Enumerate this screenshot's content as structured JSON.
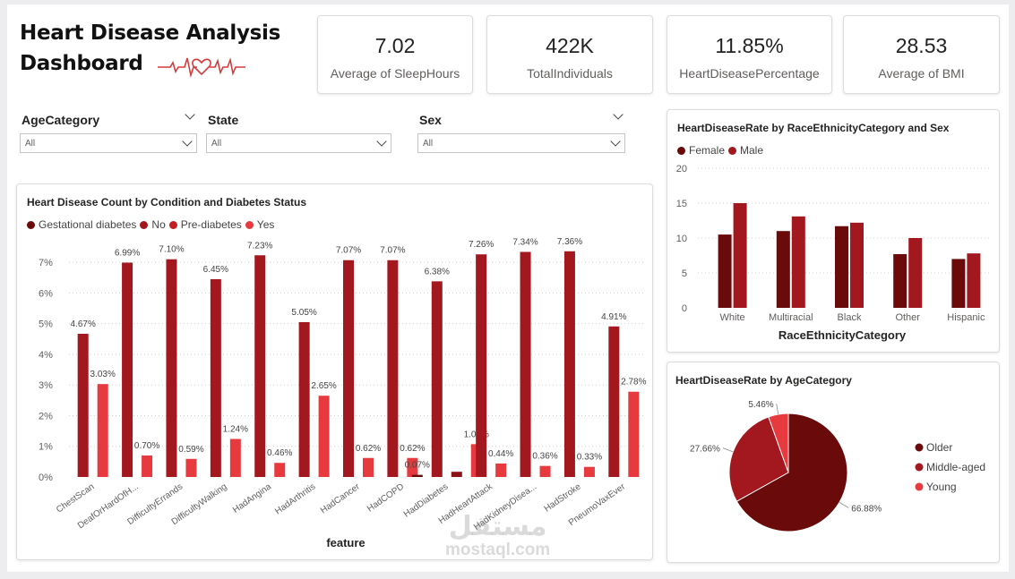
{
  "header": {
    "title_line1": "Heart Disease Analysis",
    "title_line2": "Dashboard"
  },
  "kpis": [
    {
      "value": "7.02",
      "label": "Average of SleepHours"
    },
    {
      "value": "422K",
      "label": "TotalIndividuals"
    },
    {
      "value": "11.85%",
      "label": "HeartDiseasePercentage"
    },
    {
      "value": "28.53",
      "label": "Average of BMI"
    }
  ],
  "slicers": [
    {
      "label": "AgeCategory",
      "value": "All"
    },
    {
      "label": "State",
      "value": "All"
    },
    {
      "label": "Sex",
      "value": "All"
    }
  ],
  "colors": {
    "dark": "#6b0a0a",
    "mid": "#a3171f",
    "light": "#e63a3f",
    "grid": "#cfcfcf"
  },
  "chart_data": [
    {
      "type": "bar",
      "title": "Heart Disease Count by Condition and Diabetes Status",
      "xlabel": "feature",
      "ylabel": "",
      "ylim": [
        0,
        7.5
      ],
      "yticks": [
        "0%",
        "1%",
        "2%",
        "3%",
        "4%",
        "5%",
        "6%",
        "7%"
      ],
      "legend": [
        "Gestational diabetes",
        "No",
        "Pre-diabetes",
        "Yes"
      ],
      "categories": [
        "ChestScan",
        "DeafOrHardOfH...",
        "DifficultyErrands",
        "DifficultyWalking",
        "HadAngina",
        "HadArthritis",
        "HadCancer",
        "HadCOPD",
        "HadDiabetes",
        "HadHeartAttack",
        "HadKidneyDisea...",
        "HadStroke",
        "PneumoVaxEver"
      ],
      "points": [
        {
          "x": 0,
          "series": "No",
          "value": 4.67,
          "label": "4.67%"
        },
        {
          "x": 0,
          "series": "Yes",
          "value": 3.03,
          "label": "3.03%"
        },
        {
          "x": 1,
          "series": "No",
          "value": 6.99,
          "label": "6.99%"
        },
        {
          "x": 1,
          "series": "Yes",
          "value": 0.7,
          "label": "0.70%"
        },
        {
          "x": 2,
          "series": "No",
          "value": 7.1,
          "label": "7.10%"
        },
        {
          "x": 2,
          "series": "Yes",
          "value": 0.59,
          "label": "0.59%"
        },
        {
          "x": 3,
          "series": "No",
          "value": 6.45,
          "label": "6.45%"
        },
        {
          "x": 3,
          "series": "Yes",
          "value": 1.24,
          "label": "1.24%"
        },
        {
          "x": 4,
          "series": "No",
          "value": 7.23,
          "label": "7.23%"
        },
        {
          "x": 4,
          "series": "Yes",
          "value": 0.46,
          "label": "0.46%"
        },
        {
          "x": 5,
          "series": "No",
          "value": 5.05,
          "label": "5.05%"
        },
        {
          "x": 5,
          "series": "Yes",
          "value": 2.65,
          "label": "2.65%"
        },
        {
          "x": 6,
          "series": "No",
          "value": 7.07,
          "label": "7.07%"
        },
        {
          "x": 6,
          "series": "Yes",
          "value": 0.62,
          "label": "0.62%"
        },
        {
          "x": 7,
          "series": "No",
          "value": 7.07,
          "label": "7.07%"
        },
        {
          "x": 7,
          "series": "Yes",
          "value": 0.62,
          "label": "0.62%"
        },
        {
          "x": 8,
          "series": "Gestational diabetes",
          "value": 0.07,
          "label": "0.07%"
        },
        {
          "x": 8,
          "series": "No",
          "value": 6.38,
          "label": "6.38%"
        },
        {
          "x": 8,
          "series": "Pre-diabetes",
          "value": 0.17,
          "label": ""
        },
        {
          "x": 8,
          "series": "Yes",
          "value": 1.07,
          "label": "1.07%"
        },
        {
          "x": 9,
          "series": "No",
          "value": 7.26,
          "label": "7.26%"
        },
        {
          "x": 9,
          "series": "Yes",
          "value": 0.44,
          "label": "0.44%"
        },
        {
          "x": 10,
          "series": "No",
          "value": 7.34,
          "label": "7.34%"
        },
        {
          "x": 10,
          "series": "Yes",
          "value": 0.36,
          "label": "0.36%"
        },
        {
          "x": 11,
          "series": "No",
          "value": 7.36,
          "label": "7.36%"
        },
        {
          "x": 11,
          "series": "Yes",
          "value": 0.33,
          "label": "0.33%"
        },
        {
          "x": 12,
          "series": "No",
          "value": 4.91,
          "label": "4.91%"
        },
        {
          "x": 12,
          "series": "Yes",
          "value": 2.78,
          "label": "2.78%"
        }
      ]
    },
    {
      "type": "bar",
      "title": "HeartDiseaseRate by RaceEthnicityCategory and Sex",
      "xlabel": "RaceEthnicityCategory",
      "ylabel": "",
      "ylim": [
        0,
        20
      ],
      "yticks": [
        "0",
        "5",
        "10",
        "15",
        "20"
      ],
      "categories": [
        "White",
        "Multiracial",
        "Black",
        "Other",
        "Hispanic"
      ],
      "series": [
        {
          "name": "Female",
          "values": [
            10.5,
            11.0,
            11.7,
            7.7,
            7.0
          ]
        },
        {
          "name": "Male",
          "values": [
            15.0,
            13.1,
            12.2,
            10.0,
            7.8
          ]
        }
      ]
    },
    {
      "type": "pie",
      "title": "HeartDiseaseRate by AgeCategory",
      "legend": [
        "Older",
        "Middle-aged",
        "Young"
      ],
      "slices": [
        {
          "name": "Older",
          "value": 66.88,
          "label": "66.88%"
        },
        {
          "name": "Middle-aged",
          "value": 27.66,
          "label": "27.66%"
        },
        {
          "name": "Young",
          "value": 5.46,
          "label": "5.46%"
        }
      ]
    }
  ],
  "watermark": {
    "arabic": "مستقل",
    "latin": "mostaql.com"
  }
}
